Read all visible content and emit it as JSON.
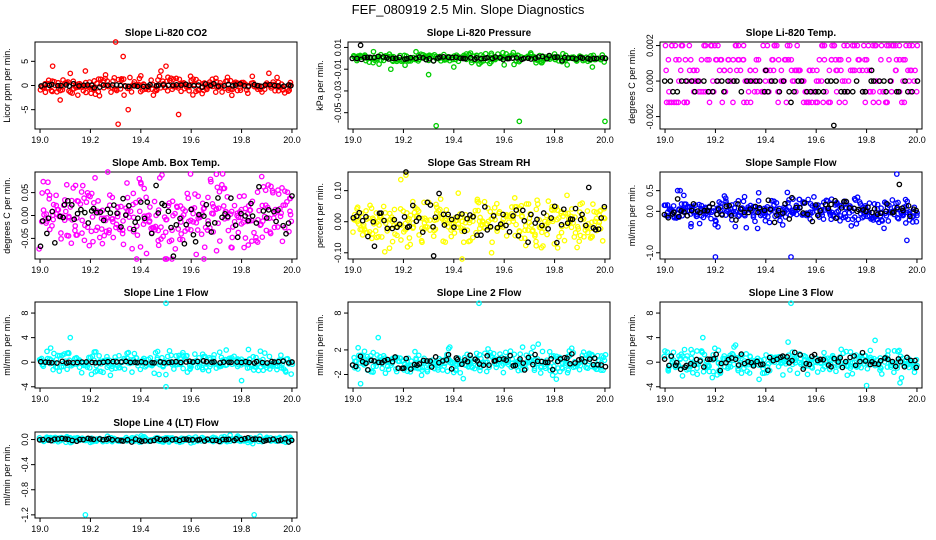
{
  "figure": {
    "title": "FEF_080919  2.5 Min. Slope Diagnostics"
  },
  "colors": {
    "black": "#000000",
    "red": "#ff0000",
    "green": "#00cc00",
    "magenta": "#ff00ff",
    "yellow": "#ffff00",
    "blue": "#0000ff",
    "cyan": "#00ffff"
  },
  "chart_data": [
    {
      "type": "scatter",
      "title": "Slope Li-820 CO2",
      "ylabel": "Licor ppm per min.",
      "x_ticks": [
        "19.0",
        "19.2",
        "19.4",
        "19.6",
        "19.8",
        "20.0"
      ],
      "y_ticks": [
        "-5",
        "0",
        "5"
      ],
      "xlim": [
        18.98,
        20.02
      ],
      "ylim": [
        -9,
        9
      ],
      "grid": false,
      "series": [
        {
          "color": "red",
          "values": [
            [
              19.05,
              4
            ],
            [
              19.08,
              -3
            ],
            [
              19.12,
              2.5
            ],
            [
              19.15,
              -2
            ],
            [
              19.18,
              3
            ],
            [
              19.22,
              -1.8
            ],
            [
              19.26,
              2.2
            ],
            [
              19.3,
              9
            ],
            [
              19.31,
              -8
            ],
            [
              19.33,
              6
            ],
            [
              19.35,
              -5
            ],
            [
              19.4,
              2
            ],
            [
              19.45,
              -2
            ],
            [
              19.48,
              3
            ],
            [
              19.52,
              1.5
            ],
            [
              19.56,
              -1.2
            ],
            [
              19.6,
              1
            ],
            [
              19.65,
              -1
            ],
            [
              19.7,
              0.8
            ],
            [
              19.75,
              -0.6
            ],
            [
              19.8,
              0.6
            ],
            [
              19.9,
              0.5
            ],
            [
              19.95,
              -0.4
            ],
            [
              19.55,
              -6
            ],
            [
              19.5,
              4
            ]
          ],
          "band": 1.6,
          "n": 220
        },
        {
          "color": "black",
          "values": [],
          "band": 0.25,
          "n": 60
        }
      ]
    },
    {
      "type": "scatter",
      "title": "Slope Li-820 Pressure",
      "ylabel": "kPa per min.",
      "x_ticks": [
        "19.0",
        "19.2",
        "19.4",
        "19.6",
        "19.8",
        "20.0"
      ],
      "y_ticks": [
        "-0.05",
        "-0.03",
        "-0.01",
        "0.01"
      ],
      "xlim": [
        18.98,
        20.02
      ],
      "ylim": [
        -0.065,
        0.015
      ],
      "grid": false,
      "series": [
        {
          "color": "green",
          "values": [
            [
              19.02,
              0.002
            ],
            [
              19.08,
              -0.004
            ],
            [
              19.15,
              -0.01
            ],
            [
              19.2,
              -0.002
            ],
            [
              19.25,
              0.006
            ],
            [
              19.3,
              -0.015
            ],
            [
              19.33,
              -0.062
            ],
            [
              19.4,
              -0.008
            ],
            [
              19.45,
              0.004
            ],
            [
              19.5,
              -0.005
            ],
            [
              19.55,
              0.003
            ],
            [
              19.6,
              -0.006
            ],
            [
              19.66,
              -0.058
            ],
            [
              19.7,
              0.002
            ],
            [
              19.75,
              -0.004
            ],
            [
              19.8,
              0.004
            ],
            [
              19.85,
              -0.006
            ],
            [
              19.9,
              0.002
            ],
            [
              20.0,
              -0.058
            ],
            [
              19.95,
              -0.008
            ]
          ],
          "band": 0.004,
          "n": 220
        },
        {
          "color": "black",
          "values": [
            [
              19.03,
              0.012
            ]
          ],
          "band": 0.0015,
          "n": 70
        }
      ]
    },
    {
      "type": "scatter",
      "title": "Slope Li-820 Temp.",
      "ylabel": "degrees C per min.",
      "x_ticks": [
        "19.0",
        "19.2",
        "19.4",
        "19.6",
        "19.8",
        "20.0"
      ],
      "y_ticks": [
        "-0.002",
        "0.000",
        "0.002"
      ],
      "xlim": [
        18.98,
        20.02
      ],
      "ylim": [
        -0.0027,
        0.0022
      ],
      "grid": false,
      "series": [
        {
          "color": "magenta",
          "levels": [
            -0.0012,
            -0.0006,
            0,
            0.0006,
            0.0012,
            0.002
          ],
          "n": 260
        },
        {
          "color": "black",
          "values": [
            [
              19.67,
              -0.0025
            ],
            [
              19.5,
              -0.0012
            ],
            [
              19.4,
              0.0006
            ],
            [
              19.82,
              0.0006
            ]
          ],
          "levels": [
            0,
            -0.0006
          ],
          "n": 60
        }
      ]
    },
    {
      "type": "scatter",
      "title": "Slope Amb. Box Temp.",
      "ylabel": "degrees C per min.",
      "x_ticks": [
        "19.0",
        "19.2",
        "19.4",
        "19.6",
        "19.8",
        "20.0"
      ],
      "y_ticks": [
        "-0.05",
        "0.00",
        "0.05"
      ],
      "xlim": [
        18.98,
        20.02
      ],
      "ylim": [
        -0.095,
        0.095
      ],
      "grid": false,
      "series": [
        {
          "color": "magenta",
          "values": [
            [
              19.7,
              0.09
            ],
            [
              19.62,
              -0.085
            ],
            [
              19.88,
              0.085
            ]
          ],
          "band": 0.07,
          "n": 330
        },
        {
          "color": "black",
          "values": [],
          "band": 0.05,
          "n": 80
        }
      ]
    },
    {
      "type": "scatter",
      "title": "Slope Gas Stream RH",
      "ylabel": "percent per min.",
      "x_ticks": [
        "19.0",
        "19.2",
        "19.4",
        "19.6",
        "19.8",
        "20.0"
      ],
      "y_ticks": [
        "-0.10",
        "0.00",
        "0.10"
      ],
      "xlim": [
        18.98,
        20.02
      ],
      "ylim": [
        -0.12,
        0.16
      ],
      "grid": false,
      "series": [
        {
          "color": "yellow",
          "values": [
            [
              19.21,
              0.15
            ],
            [
              19.55,
              -0.1
            ]
          ],
          "band": 0.07,
          "n": 330
        },
        {
          "color": "black",
          "values": [
            [
              19.21,
              0.16
            ],
            [
              19.32,
              -0.11
            ]
          ],
          "band": 0.06,
          "n": 80
        }
      ]
    },
    {
      "type": "scatter",
      "title": "Slope Sample Flow",
      "ylabel": "ml/min per min.",
      "x_ticks": [
        "19.0",
        "19.2",
        "19.4",
        "19.6",
        "19.8",
        "20.0"
      ],
      "y_ticks": [
        "-1.0",
        "0.0",
        "0.5"
      ],
      "xlim": [
        18.98,
        20.02
      ],
      "ylim": [
        -1.15,
        0.95
      ],
      "grid": false,
      "series": [
        {
          "color": "blue",
          "values": [
            [
              19.2,
              -1.1
            ],
            [
              19.5,
              -1.1
            ],
            [
              19.92,
              0.9
            ],
            [
              19.06,
              0.5
            ],
            [
              19.05,
              0.5
            ],
            [
              19.96,
              -0.7
            ]
          ],
          "band": 0.28,
          "n": 330
        },
        {
          "color": "black",
          "values": [
            [
              19.93,
              0.65
            ],
            [
              19.05,
              0.3
            ]
          ],
          "band": 0.22,
          "n": 80
        }
      ]
    },
    {
      "type": "scatter",
      "title": "Slope Line 1 Flow",
      "ylabel": "ml/min per min.",
      "x_ticks": [
        "19.0",
        "19.2",
        "19.4",
        "19.6",
        "19.8",
        "20.0"
      ],
      "y_ticks": [
        "-4",
        "0",
        "4",
        "8"
      ],
      "xlim": [
        18.98,
        20.02
      ],
      "ylim": [
        -4.2,
        9.8
      ],
      "grid": false,
      "series": [
        {
          "color": "cyan",
          "values": [
            [
              19.5,
              9.6
            ],
            [
              19.12,
              4
            ],
            [
              19.5,
              -4
            ],
            [
              19.8,
              -3
            ]
          ],
          "band": 1.5,
          "n": 300
        },
        {
          "color": "black",
          "values": [],
          "band": 0.15,
          "n": 60
        }
      ]
    },
    {
      "type": "scatter",
      "title": "Slope Line 2 Flow",
      "ylabel": "ml/min per min.",
      "x_ticks": [
        "19.0",
        "19.2",
        "19.4",
        "19.6",
        "19.8",
        "20.0"
      ],
      "y_ticks": [
        "-2",
        "2",
        "8"
      ],
      "xlim": [
        18.98,
        20.02
      ],
      "ylim": [
        -4.2,
        9.8
      ],
      "grid": false,
      "series": [
        {
          "color": "cyan",
          "values": [
            [
              19.5,
              9.6
            ],
            [
              19.1,
              4
            ],
            [
              19.03,
              -3.5
            ]
          ],
          "band": 1.8,
          "n": 320
        },
        {
          "color": "black",
          "values": [],
          "band": 1.2,
          "n": 80
        }
      ]
    },
    {
      "type": "scatter",
      "title": "Slope Line 3 Flow",
      "ylabel": "ml/min per min.",
      "x_ticks": [
        "19.0",
        "19.2",
        "19.4",
        "19.6",
        "19.8",
        "20.0"
      ],
      "y_ticks": [
        "-4",
        "0",
        "4",
        "8"
      ],
      "xlim": [
        18.98,
        20.02
      ],
      "ylim": [
        -4.2,
        9.8
      ],
      "grid": false,
      "series": [
        {
          "color": "cyan",
          "values": [
            [
              19.5,
              9.6
            ],
            [
              19.15,
              4
            ],
            [
              19.8,
              -3.8
            ]
          ],
          "band": 1.8,
          "n": 320
        },
        {
          "color": "black",
          "values": [],
          "band": 1.2,
          "n": 80
        }
      ]
    },
    {
      "type": "scatter",
      "title": "Slope Line 4 (LT) Flow",
      "ylabel": "ml/min per min.",
      "x_ticks": [
        "19.0",
        "19.2",
        "19.4",
        "19.6",
        "19.8",
        "20.0"
      ],
      "y_ticks": [
        "-1.2",
        "-0.8",
        "-0.4",
        "0.0"
      ],
      "xlim": [
        18.98,
        20.02
      ],
      "ylim": [
        -1.25,
        0.12
      ],
      "grid": false,
      "series": [
        {
          "color": "cyan",
          "values": [
            [
              19.18,
              -1.2
            ],
            [
              19.85,
              -1.2
            ]
          ],
          "band": 0.04,
          "n": 300
        },
        {
          "color": "black",
          "values": [],
          "band": 0.03,
          "n": 70
        }
      ]
    }
  ]
}
